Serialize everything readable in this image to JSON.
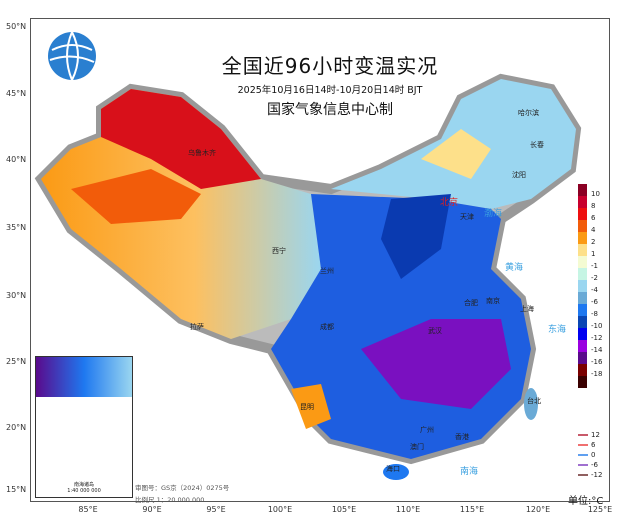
{
  "title": {
    "main": "全国近96小时变温实况",
    "period": "2025年10月16日14时-10月20日14时 BJT",
    "issuer": "国家气象信息中心制"
  },
  "axes": {
    "lat_labels": [
      "50°N",
      "45°N",
      "40°N",
      "35°N",
      "30°N",
      "25°N",
      "20°N",
      "15°N"
    ],
    "lon_labels": [
      "85°E",
      "90°E",
      "95°E",
      "100°E",
      "105°E",
      "110°E",
      "115°E",
      "120°E",
      "125°E"
    ]
  },
  "colorbar": {
    "unit": "单位:°C",
    "labels": [
      "10",
      "8",
      "6",
      "4",
      "2",
      "1",
      "-1",
      "-2",
      "-4",
      "-6",
      "-8",
      "-10",
      "-12",
      "-14",
      "-16",
      "-18"
    ],
    "colors": [
      "#8b0024",
      "#c8002e",
      "#ee1010",
      "#f25c0a",
      "#fb9a14",
      "#fde08a",
      "#f4fbd2",
      "#c6f5e4",
      "#9ad6f0",
      "#6aaad6",
      "#1e78f0",
      "#0a46b4",
      "#0000f0",
      "#9a00e0",
      "#5a0a8c",
      "#7a0000",
      "#3a0000"
    ]
  },
  "line_legend": [
    {
      "label": "12",
      "color": "#c85a6a"
    },
    {
      "label": "6",
      "color": "#f07070"
    },
    {
      "label": "0",
      "color": "#60a0f0"
    },
    {
      "label": "-6",
      "color": "#a070d0"
    },
    {
      "label": "-12",
      "color": "#906060"
    }
  ],
  "cities": [
    {
      "name": "哈尔滨"
    },
    {
      "name": "长春"
    },
    {
      "name": "沈阳"
    },
    {
      "name": "北京"
    },
    {
      "name": "天津"
    },
    {
      "name": "乌鲁木齐"
    },
    {
      "name": "西宁"
    },
    {
      "name": "兰州"
    },
    {
      "name": "拉萨"
    },
    {
      "name": "成都"
    },
    {
      "name": "武汉"
    },
    {
      "name": "南京"
    },
    {
      "name": "合肥"
    },
    {
      "name": "上海"
    },
    {
      "name": "台北"
    },
    {
      "name": "广州"
    },
    {
      "name": "香港"
    },
    {
      "name": "澳门"
    },
    {
      "name": "海口"
    },
    {
      "name": "昆明"
    }
  ],
  "seas": [
    "渤海",
    "黄海",
    "东海",
    "南海"
  ],
  "inset": {
    "caption": "南海诸岛",
    "scale": "1:40 000 000"
  },
  "approval_number": "审图号：GS京（2024）0275号",
  "scale": "比例尺 1：20 000 000"
}
